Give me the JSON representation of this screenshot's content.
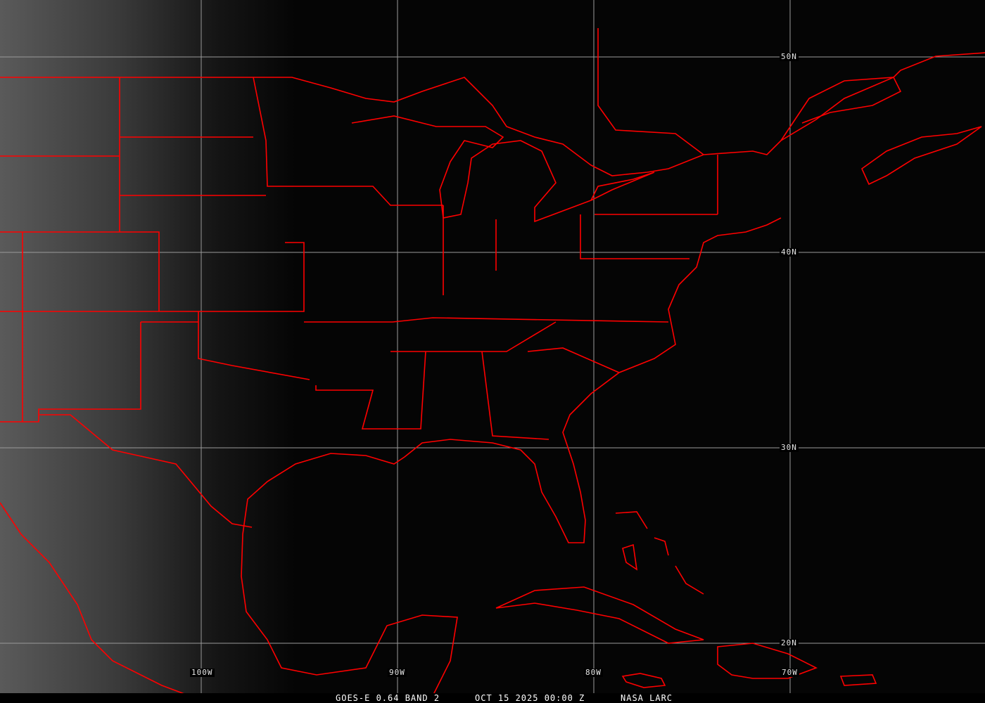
{
  "map": {
    "type": "satellite visible imagery",
    "overlay_color": "#ff0000",
    "grid_color": "#9a9a9a",
    "longitude_labels": [
      "100W",
      "90W",
      "80W",
      "70W"
    ],
    "latitude_labels": [
      "50N",
      "40N",
      "30N",
      "20N"
    ]
  },
  "caption": {
    "product": "GOES-E 0.64 BAND 2",
    "datetime": "OCT 15 2025 00:00 Z",
    "source": "NASA LARC"
  }
}
